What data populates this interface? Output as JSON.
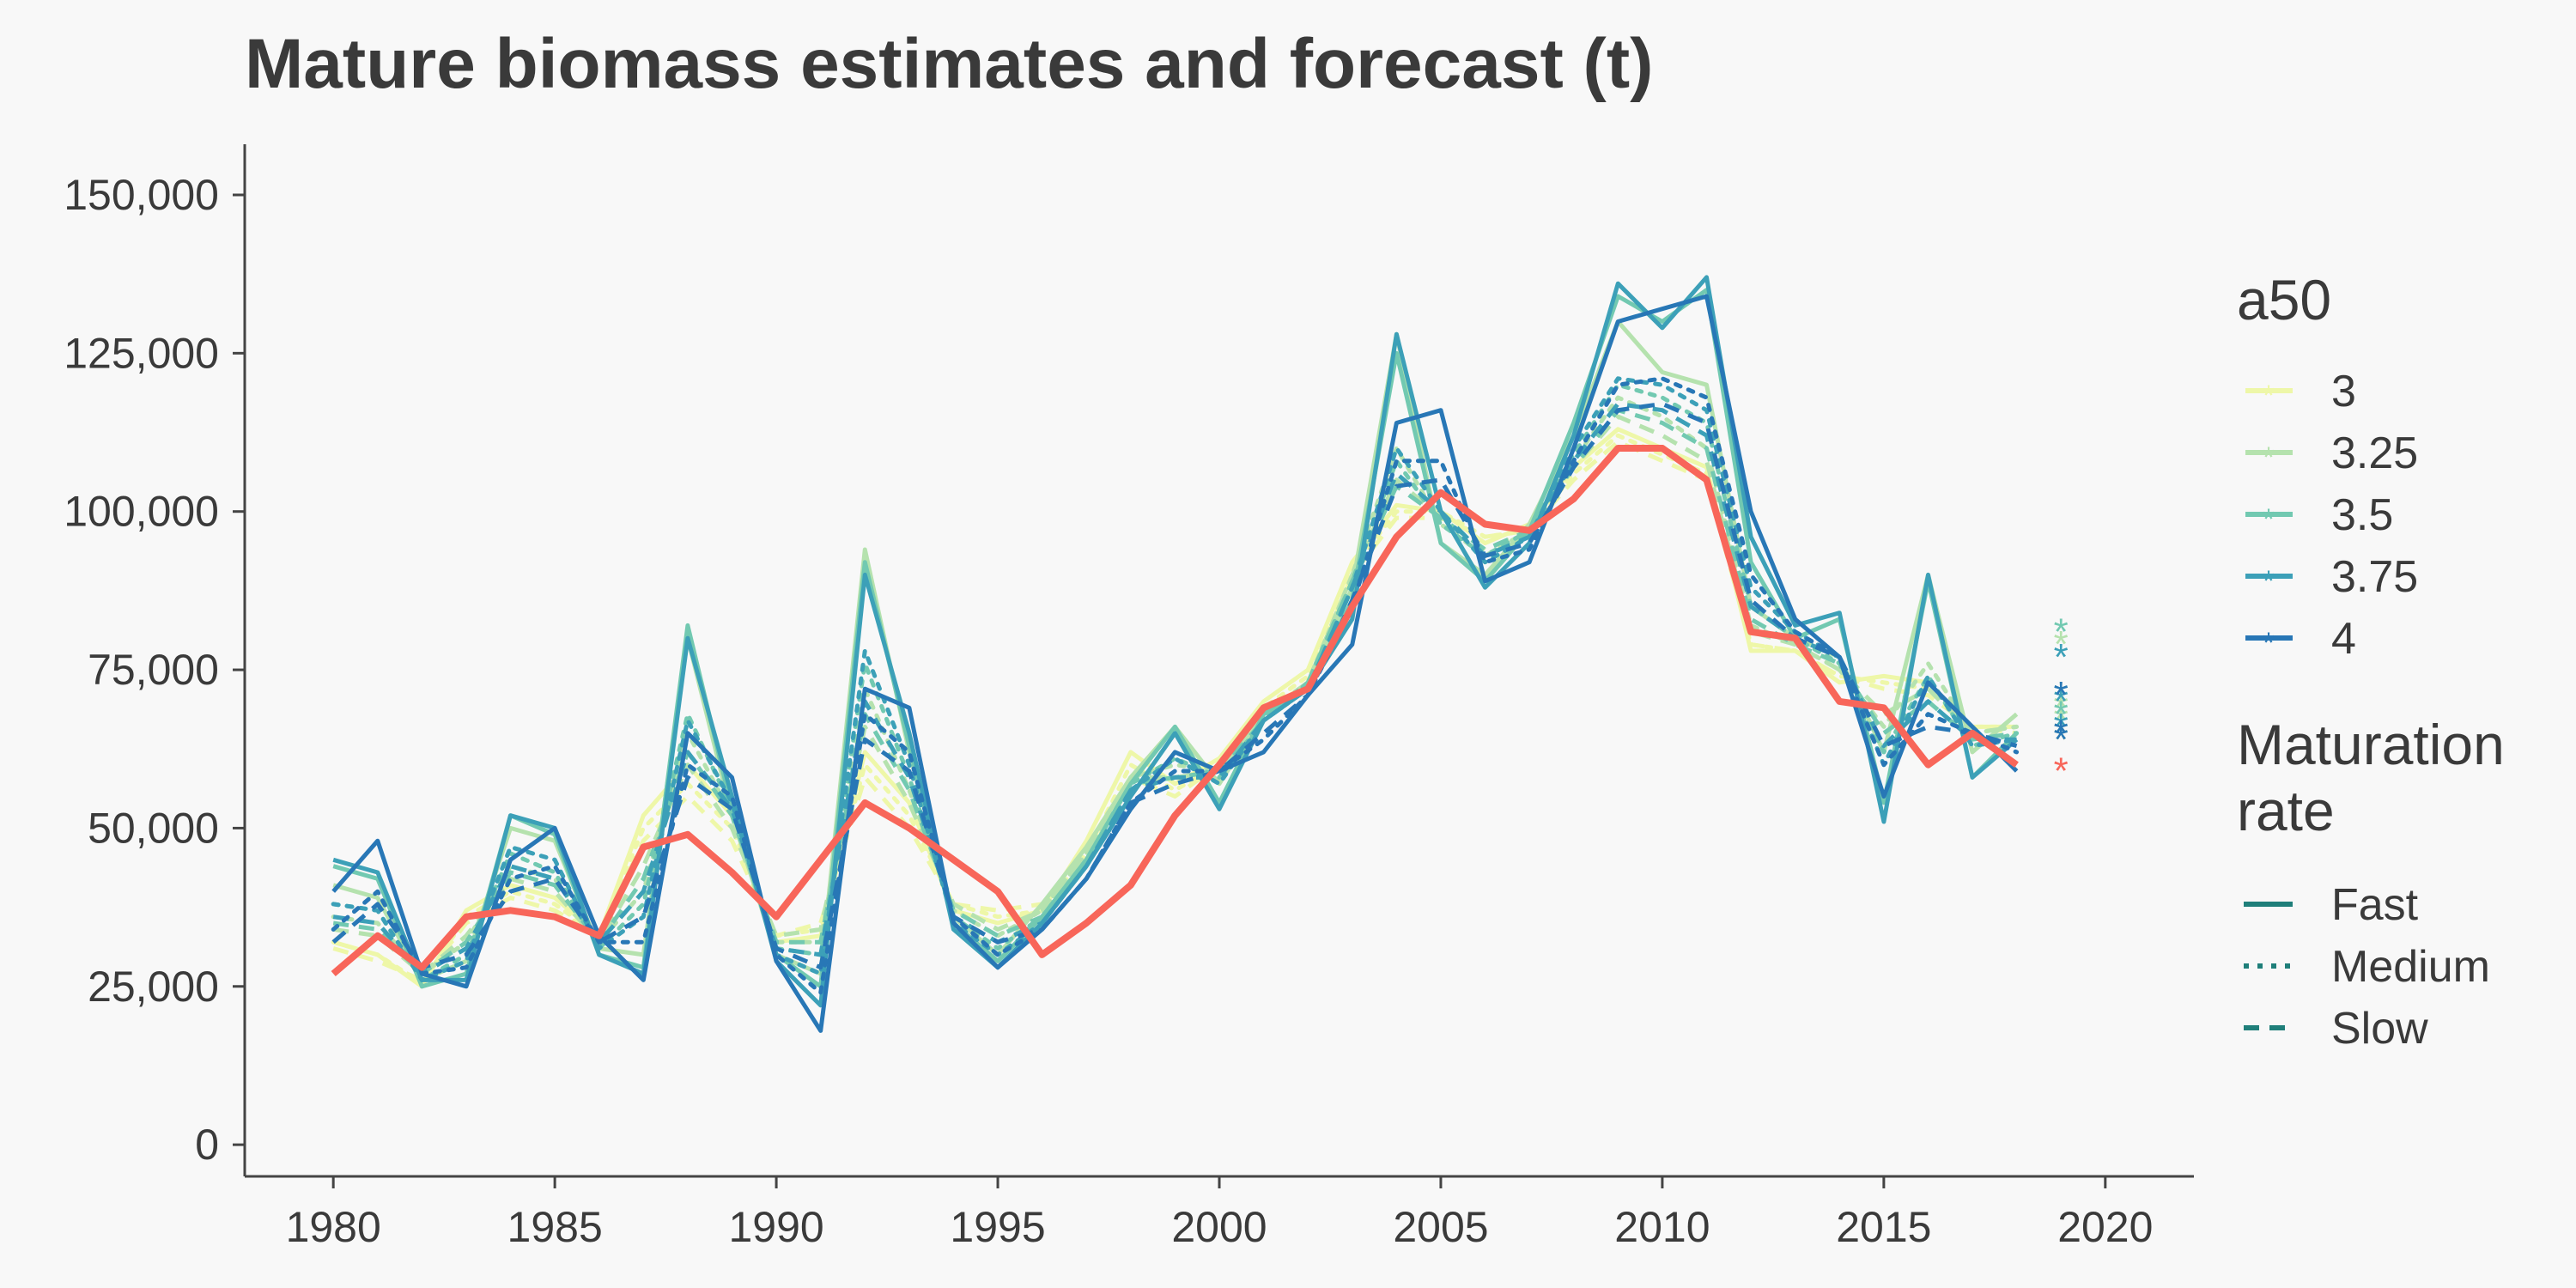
{
  "chart_data": {
    "type": "line",
    "title": "Mature biomass estimates and forecast (t)",
    "xlabel": "",
    "ylabel": "",
    "xlim": [
      1978,
      2022
    ],
    "ylim": [
      -5000,
      158000
    ],
    "x_ticks": [
      1980,
      1985,
      1990,
      1995,
      2000,
      2005,
      2010,
      2015,
      2020
    ],
    "x_tick_labels": [
      "1980",
      "1985",
      "1990",
      "1995",
      "2000",
      "2005",
      "2010",
      "2015",
      "2020"
    ],
    "y_ticks": [
      0,
      25000,
      50000,
      75000,
      100000,
      125000,
      150000
    ],
    "y_tick_labels": [
      "0",
      "25,000",
      "50,000",
      "75,000",
      "100,000",
      "125,000",
      "150,000"
    ],
    "grid": false,
    "x": [
      1980,
      1981,
      1982,
      1983,
      1984,
      1985,
      1986,
      1987,
      1988,
      1989,
      1990,
      1991,
      1992,
      1993,
      1994,
      1995,
      1996,
      1997,
      1998,
      1999,
      2000,
      2001,
      2002,
      2003,
      2004,
      2005,
      2006,
      2007,
      2008,
      2009,
      2010,
      2011,
      2012,
      2013,
      2014,
      2015,
      2016,
      2017,
      2018
    ],
    "legend": {
      "placement": "right",
      "a50_title": "a50",
      "a50_items": [
        {
          "label": "3",
          "color": "#eef7a8"
        },
        {
          "label": "3.25",
          "color": "#b5e2ae"
        },
        {
          "label": "3.5",
          "color": "#72c9b1"
        },
        {
          "label": "3.75",
          "color": "#3ca0b8"
        },
        {
          "label": "4",
          "color": "#2877b6"
        }
      ],
      "rate_title_line1": "Maturation",
      "rate_title_line2": "rate",
      "rate_items": [
        {
          "label": "Fast",
          "dash": "solid"
        },
        {
          "label": "Medium",
          "dash": "dotted"
        },
        {
          "label": "Slow",
          "dash": "dashed"
        }
      ],
      "rate_color": "#1f7f7a"
    },
    "series": [
      {
        "a50": "3",
        "rate": "Fast",
        "color": "#eef7a8",
        "dash": "solid",
        "values": [
          32000,
          30000,
          25000,
          37000,
          41000,
          39000,
          33000,
          52000,
          60000,
          52000,
          32000,
          33000,
          62000,
          54000,
          37000,
          35000,
          37000,
          48000,
          62000,
          57000,
          61000,
          70000,
          75000,
          92000,
          101000,
          100000,
          95000,
          98000,
          107000,
          113000,
          110000,
          107000,
          78000,
          78000,
          73000,
          74000,
          73000,
          66000,
          66000
        ],
        "forecast": 65000
      },
      {
        "a50": "3",
        "rate": "Medium",
        "color": "#eef7a8",
        "dash": "dotted",
        "values": [
          32000,
          30000,
          25500,
          36000,
          40000,
          38000,
          33000,
          50000,
          57000,
          50000,
          33000,
          34000,
          60000,
          52000,
          38000,
          36000,
          37000,
          46000,
          60000,
          56000,
          60000,
          69000,
          74000,
          91000,
          100000,
          100000,
          96000,
          97000,
          106000,
          112000,
          109000,
          106000,
          79000,
          78000,
          74000,
          73000,
          72000,
          66000,
          66000
        ],
        "forecast": 66000
      },
      {
        "a50": "3",
        "rate": "Slow",
        "color": "#eef7a8",
        "dash": "dashed",
        "values": [
          31000,
          29000,
          26000,
          35000,
          39000,
          37000,
          33000,
          48000,
          55000,
          48000,
          33000,
          35000,
          58000,
          50000,
          38000,
          37000,
          38000,
          45000,
          58000,
          55000,
          60000,
          68000,
          73000,
          90000,
          99000,
          99000,
          96000,
          97000,
          105000,
          111000,
          108000,
          105000,
          79000,
          78000,
          74000,
          72000,
          71000,
          66000,
          65000
        ],
        "forecast": 65000
      },
      {
        "a50": "3.25",
        "rate": "Fast",
        "color": "#b5e2ae",
        "dash": "solid",
        "values": [
          41000,
          39000,
          26000,
          29000,
          50000,
          48000,
          31000,
          30000,
          80000,
          52000,
          30000,
          27000,
          94000,
          62000,
          36000,
          30000,
          38000,
          47000,
          58000,
          66000,
          57000,
          68000,
          72000,
          88000,
          128000,
          95000,
          90000,
          98000,
          112000,
          130000,
          122000,
          120000,
          85000,
          80000,
          77000,
          62000,
          90000,
          62000,
          68000
        ],
        "forecast": 80000
      },
      {
        "a50": "3.25",
        "rate": "Medium",
        "color": "#b5e2ae",
        "dash": "dotted",
        "values": [
          36000,
          35000,
          27000,
          32000,
          44000,
          42000,
          32000,
          40000,
          65000,
          52000,
          32000,
          32000,
          72000,
          56000,
          37000,
          33000,
          37000,
          46000,
          58000,
          60000,
          59000,
          68000,
          73000,
          90000,
          110000,
          98000,
          93000,
          97000,
          108000,
          118000,
          115000,
          110000,
          82000,
          79000,
          75000,
          66000,
          76000,
          65000,
          66000
        ],
        "forecast": 70000
      },
      {
        "a50": "3.25",
        "rate": "Slow",
        "color": "#b5e2ae",
        "dash": "dashed",
        "values": [
          34000,
          33000,
          27000,
          33000,
          42000,
          40000,
          32000,
          44000,
          60000,
          50000,
          33000,
          34000,
          66000,
          54000,
          38000,
          34000,
          37000,
          46000,
          58000,
          58000,
          59000,
          68000,
          73000,
          90000,
          105000,
          99000,
          94000,
          97000,
          107000,
          115000,
          112000,
          108000,
          81000,
          79000,
          75000,
          68000,
          72000,
          65000,
          66000
        ],
        "forecast": 68000
      },
      {
        "a50": "3.5",
        "rate": "Fast",
        "color": "#72c9b1",
        "dash": "solid",
        "values": [
          44000,
          42000,
          25000,
          27000,
          52000,
          49000,
          30000,
          28000,
          82000,
          53000,
          30000,
          25000,
          92000,
          63000,
          35000,
          29000,
          36000,
          45000,
          57000,
          66000,
          54000,
          68000,
          72000,
          86000,
          125000,
          95000,
          89000,
          97000,
          114000,
          134000,
          130000,
          135000,
          92000,
          80000,
          83000,
          54000,
          89000,
          58000,
          65000
        ],
        "forecast": 82000
      },
      {
        "a50": "3.5",
        "rate": "Medium",
        "color": "#72c9b1",
        "dash": "dotted",
        "values": [
          38000,
          37000,
          26000,
          30000,
          46000,
          43000,
          31000,
          38000,
          68000,
          53000,
          31000,
          30000,
          76000,
          58000,
          36000,
          31000,
          36000,
          45000,
          57000,
          61000,
          58000,
          67000,
          73000,
          89000,
          108000,
          98000,
          93000,
          97000,
          109000,
          120000,
          118000,
          114000,
          85000,
          80000,
          76000,
          62000,
          74000,
          63000,
          65000
        ],
        "forecast": 72000
      },
      {
        "a50": "3.5",
        "rate": "Slow",
        "color": "#72c9b1",
        "dash": "dashed",
        "values": [
          35000,
          34000,
          27000,
          32000,
          43000,
          41000,
          32000,
          42000,
          62000,
          52000,
          32000,
          32000,
          68000,
          56000,
          37000,
          33000,
          36000,
          45000,
          57000,
          58000,
          59000,
          67000,
          73000,
          89000,
          104000,
          99000,
          94000,
          97000,
          107000,
          116000,
          114000,
          110000,
          83000,
          79000,
          76000,
          65000,
          70000,
          64000,
          65000
        ],
        "forecast": 69000
      },
      {
        "a50": "3.75",
        "rate": "Fast",
        "color": "#3ca0b8",
        "dash": "solid",
        "values": [
          45000,
          43000,
          26000,
          26000,
          52000,
          50000,
          30000,
          27000,
          80000,
          55000,
          29000,
          22000,
          90000,
          65000,
          34000,
          28000,
          35000,
          44000,
          55000,
          65000,
          53000,
          67000,
          72000,
          83000,
          128000,
          100000,
          88000,
          95000,
          112000,
          136000,
          129000,
          137000,
          96000,
          82000,
          84000,
          51000,
          90000,
          58000,
          64000
        ],
        "forecast": 78000
      },
      {
        "a50": "3.75",
        "rate": "Medium",
        "color": "#3ca0b8",
        "dash": "dotted",
        "values": [
          38000,
          37000,
          26000,
          29000,
          47000,
          45000,
          31000,
          36000,
          67000,
          54000,
          30000,
          27000,
          78000,
          60000,
          35000,
          30000,
          35000,
          44000,
          56000,
          61000,
          57000,
          67000,
          72000,
          88000,
          110000,
          100000,
          92000,
          96000,
          110000,
          121000,
          120000,
          116000,
          88000,
          81000,
          77000,
          60000,
          74000,
          63000,
          64000
        ],
        "forecast": 71000
      },
      {
        "a50": "3.75",
        "rate": "Slow",
        "color": "#3ca0b8",
        "dash": "dashed",
        "values": [
          36000,
          35000,
          27000,
          31000,
          44000,
          42000,
          32000,
          40000,
          62000,
          53000,
          31000,
          30000,
          70000,
          58000,
          36000,
          32000,
          35000,
          44000,
          56000,
          58000,
          58000,
          67000,
          72000,
          88000,
          106000,
          100000,
          93000,
          96000,
          108000,
          117000,
          116000,
          112000,
          85000,
          80000,
          77000,
          63000,
          70000,
          64000,
          64000
        ],
        "forecast": 67000
      },
      {
        "a50": "4",
        "rate": "Fast",
        "color": "#2877b6",
        "dash": "solid",
        "values": [
          40000,
          48000,
          27000,
          25000,
          45000,
          50000,
          33000,
          26000,
          65000,
          58000,
          29000,
          18000,
          72000,
          69000,
          35000,
          28000,
          34000,
          42000,
          53000,
          62000,
          59000,
          62000,
          71000,
          79000,
          114000,
          116000,
          89000,
          92000,
          110000,
          130000,
          132000,
          134000,
          100000,
          83000,
          77000,
          55000,
          73000,
          66000,
          59000
        ],
        "forecast": 72000
      },
      {
        "a50": "4",
        "rate": "Medium",
        "color": "#2877b6",
        "dash": "dotted",
        "values": [
          34000,
          40000,
          27000,
          28000,
          42000,
          44000,
          32000,
          32000,
          60000,
          55000,
          30000,
          24000,
          68000,
          62000,
          36000,
          30000,
          34000,
          42000,
          54000,
          59000,
          59000,
          64000,
          71000,
          85000,
          108000,
          108000,
          92000,
          94000,
          108000,
          120000,
          121000,
          118000,
          90000,
          81000,
          77000,
          60000,
          68000,
          65000,
          62000
        ],
        "forecast": 66000
      },
      {
        "a50": "4",
        "rate": "Slow",
        "color": "#2877b6",
        "dash": "dashed",
        "values": [
          32000,
          38000,
          28000,
          30000,
          40000,
          42000,
          32000,
          36000,
          58000,
          53000,
          31000,
          28000,
          64000,
          59000,
          36000,
          32000,
          34000,
          42000,
          54000,
          57000,
          59000,
          65000,
          71000,
          86000,
          104000,
          105000,
          93000,
          95000,
          107000,
          116000,
          117000,
          114000,
          86000,
          80000,
          77000,
          63000,
          66000,
          65000,
          63000
        ],
        "forecast": 65000
      },
      {
        "a50": "",
        "rate": "",
        "color": "#f8665a",
        "dash": "solid",
        "highlight": true,
        "values": [
          27000,
          33000,
          28000,
          36000,
          37000,
          36000,
          33000,
          47000,
          49000,
          43000,
          36000,
          45000,
          54000,
          50000,
          45000,
          40000,
          30000,
          35000,
          41000,
          52000,
          60000,
          69000,
          72000,
          85000,
          96000,
          103000,
          98000,
          97000,
          102000,
          110000,
          110000,
          105000,
          81000,
          80000,
          70000,
          69000,
          60000,
          65000,
          60000
        ],
        "forecast": 60000
      }
    ]
  }
}
